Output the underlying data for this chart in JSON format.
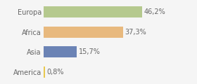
{
  "categories": [
    "Europa",
    "Africa",
    "Asia",
    "America"
  ],
  "values": [
    46.2,
    37.3,
    15.7,
    0.8
  ],
  "labels": [
    "46,2%",
    "37,3%",
    "15,7%",
    "0,8%"
  ],
  "bar_colors": [
    "#b5c98e",
    "#e8b97e",
    "#6b83b5",
    "#e8c84e"
  ],
  "background_color": "#f5f5f5",
  "xlim": [
    0,
    70
  ],
  "bar_height": 0.55,
  "label_fontsize": 7,
  "tick_fontsize": 7
}
